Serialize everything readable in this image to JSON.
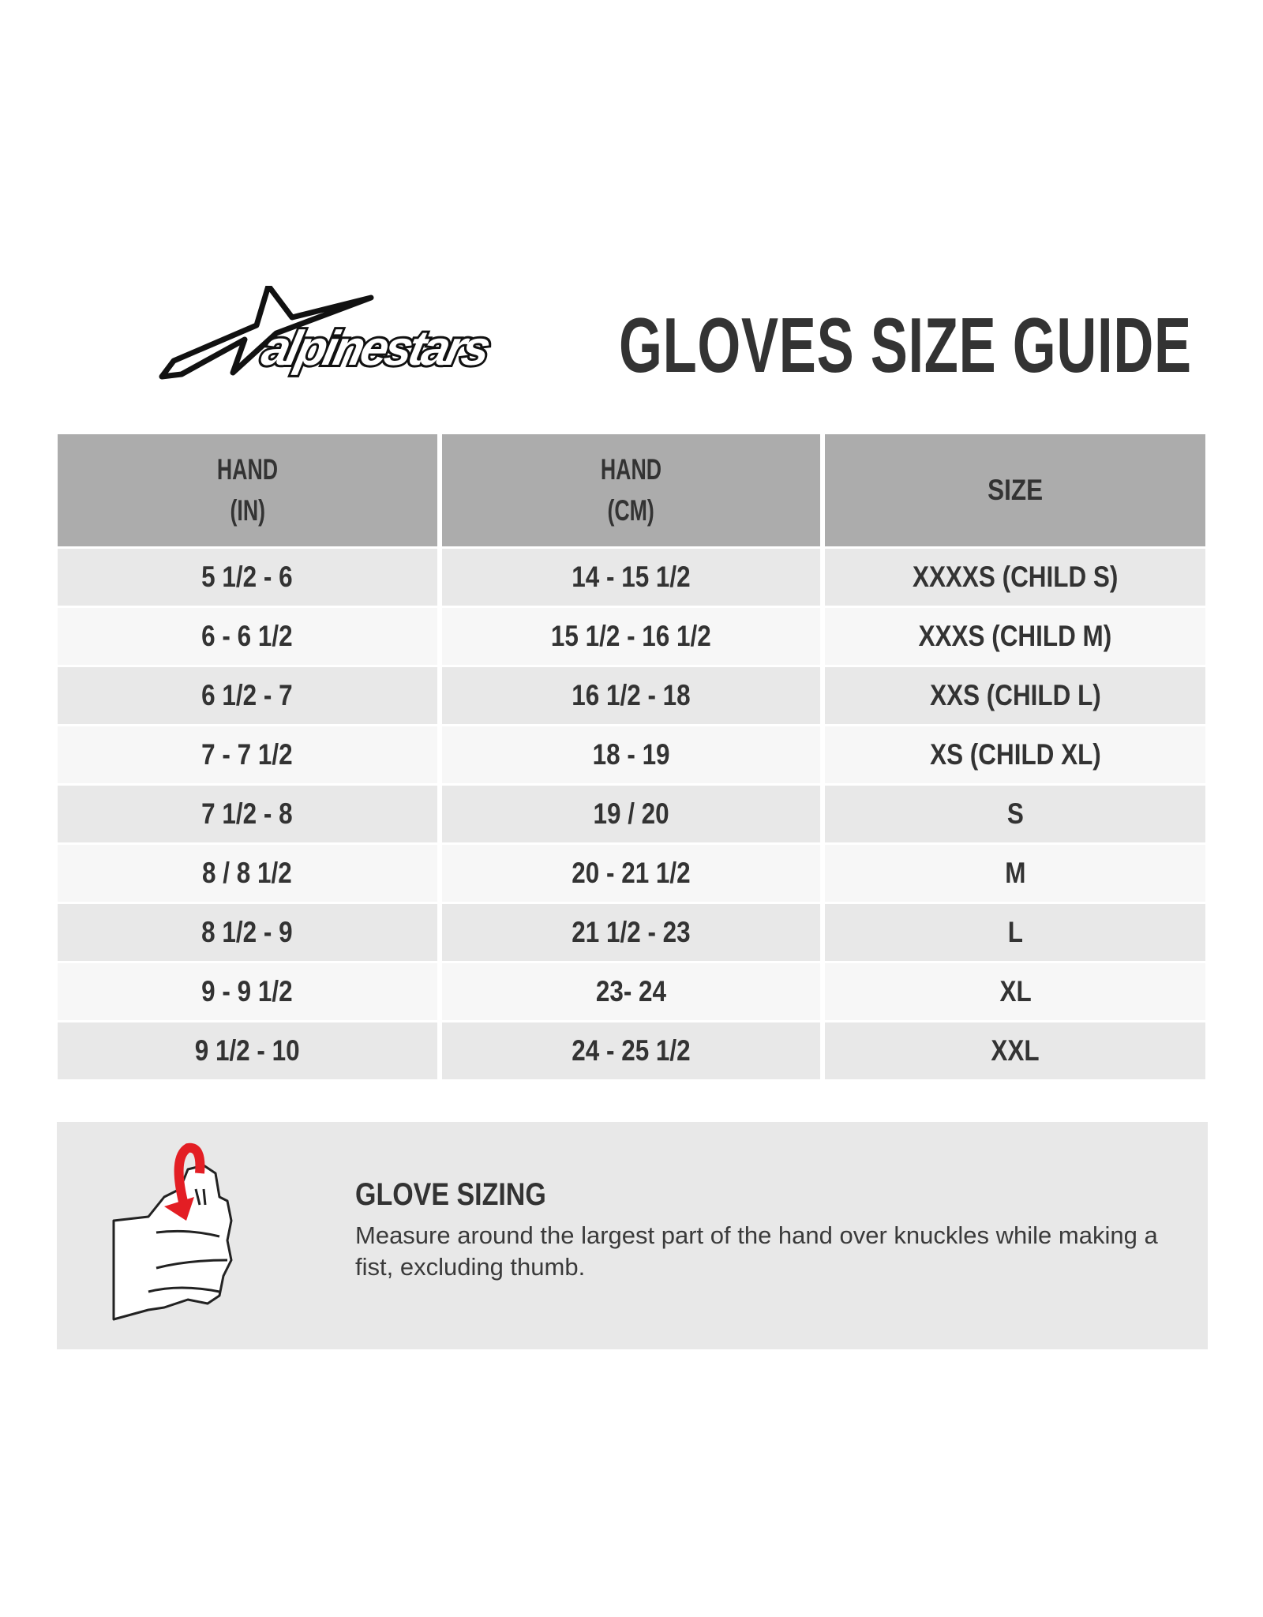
{
  "header": {
    "brand": "alpinestars",
    "title": "GLOVES SIZE GUIDE"
  },
  "table": {
    "headers": [
      {
        "line1": "HAND",
        "line2": "(IN)"
      },
      {
        "line1": "HAND",
        "line2": "(CM)"
      },
      {
        "line1": "SIZE",
        "line2": ""
      }
    ],
    "rows": [
      [
        "5 1/2 - 6",
        "14 - 15 1/2",
        "XXXXS (CHILD S)"
      ],
      [
        "6 - 6 1/2",
        "15 1/2 - 16 1/2",
        "XXXS (CHILD M)"
      ],
      [
        "6 1/2 - 7",
        "16 1/2 - 18",
        "XXS (CHILD L)"
      ],
      [
        "7 - 7 1/2",
        "18 - 19",
        "XS (CHILD XL)"
      ],
      [
        "7 1/2 - 8",
        "19 / 20",
        "S"
      ],
      [
        "8 / 8 1/2",
        "20 - 21 1/2",
        "M"
      ],
      [
        "8 1/2 - 9",
        "21 1/2 - 23",
        "L"
      ],
      [
        "9 - 9 1/2",
        "23- 24",
        "XL"
      ],
      [
        "9 1/2 - 10",
        "24 - 25 1/2",
        "XXL"
      ]
    ]
  },
  "info": {
    "title": "GLOVE SIZING",
    "text": "Measure around the largest part of the hand over knuckles while making a fist, excluding thumb.",
    "icon": "fist-measure-icon"
  },
  "colors": {
    "header_bg": "#acacac",
    "row_odd": "#e8e8e8",
    "row_even": "#f7f7f7",
    "text": "#333333",
    "arrow": "#e31e24"
  }
}
